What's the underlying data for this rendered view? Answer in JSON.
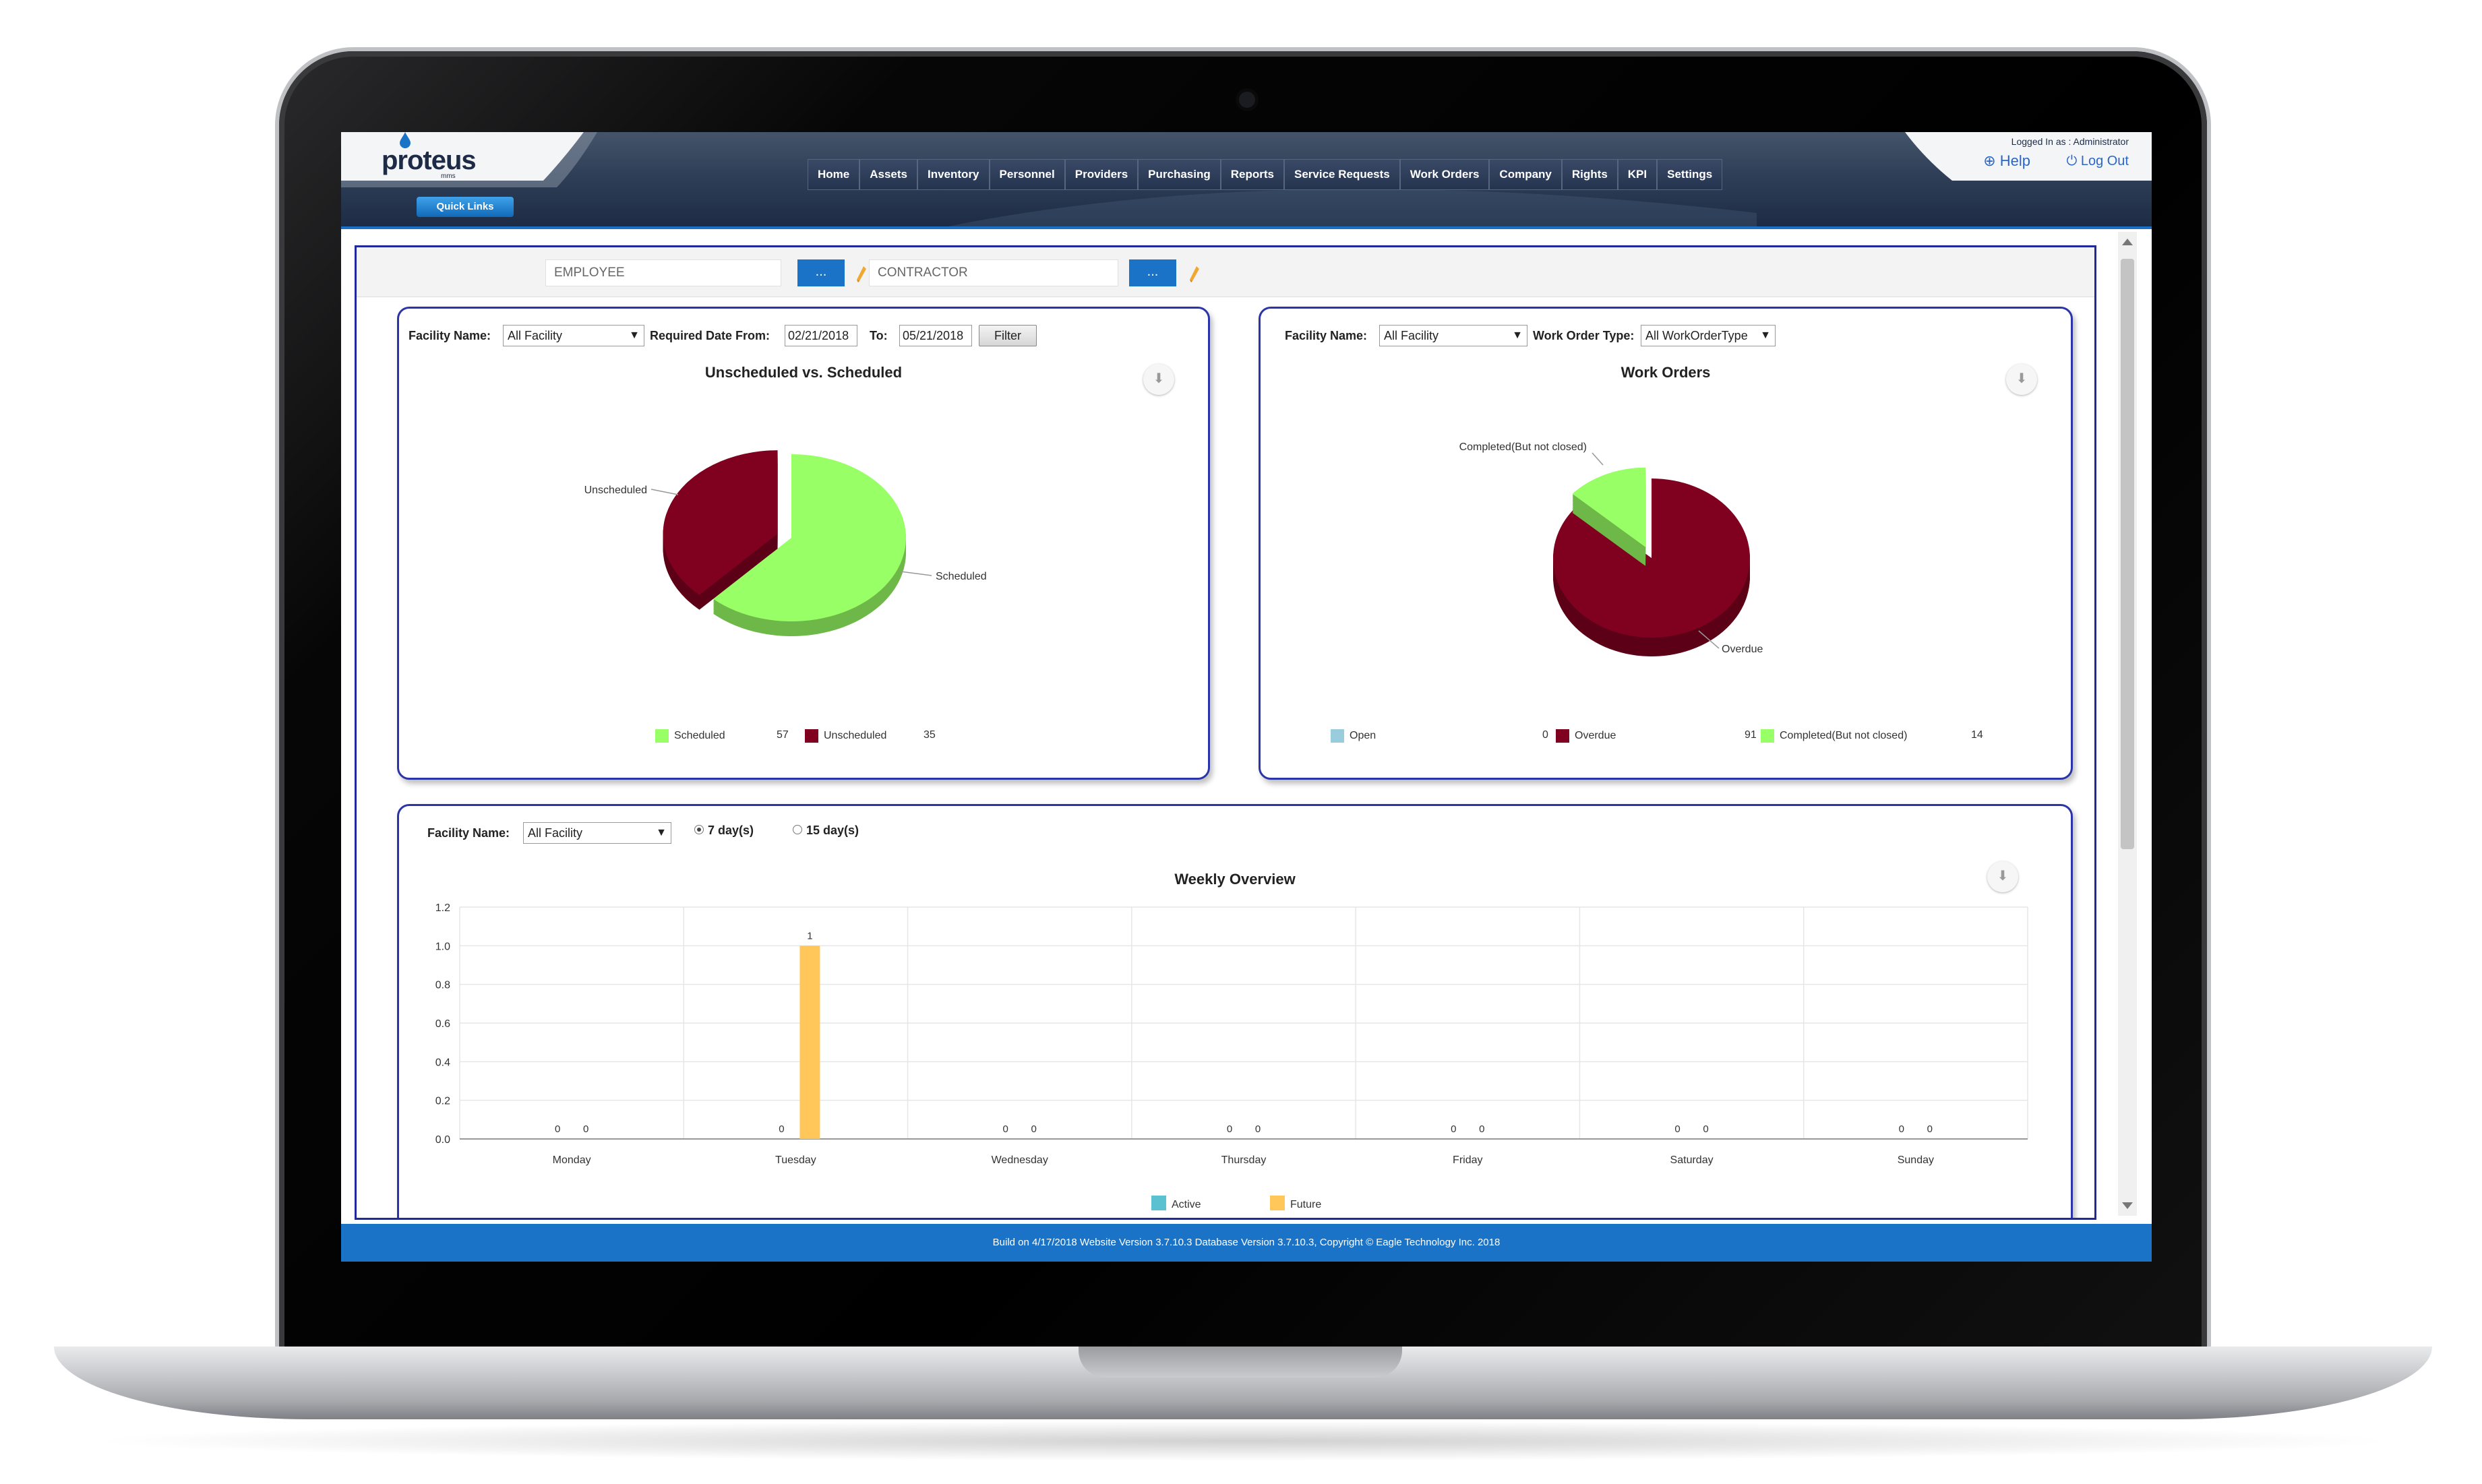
{
  "header": {
    "logo": "proteus",
    "logo_sub": "mms",
    "logged_in": "Logged In as : Administrator",
    "help": "Help",
    "logout": "Log Out",
    "quick_links": "Quick Links",
    "nav": [
      "Home",
      "Assets",
      "Inventory",
      "Personnel",
      "Providers",
      "Purchasing",
      "Reports",
      "Service Requests",
      "Work Orders",
      "Company",
      "Rights",
      "KPI",
      "Settings"
    ]
  },
  "filter_bar": {
    "employee_placeholder": "EMPLOYEE",
    "contractor_placeholder": "CONTRACTOR",
    "button_label": "..."
  },
  "panel1": {
    "facility_label": "Facility Name:",
    "facility_value": "All Facility",
    "date_from_label": "Required Date From:",
    "date_from": "02/21/2018",
    "to_label": "To:",
    "date_to": "05/21/2018",
    "filter_button": "Filter",
    "title": "Unscheduled vs. Scheduled",
    "chart_data": {
      "type": "pie",
      "title": "Unscheduled vs. Scheduled",
      "slices": [
        {
          "name": "Scheduled",
          "value": 57,
          "color": "#99ff66"
        },
        {
          "name": "Unscheduled",
          "value": 35,
          "color": "#800020"
        }
      ],
      "legend": "bottom"
    }
  },
  "panel2": {
    "facility_label": "Facility Name:",
    "facility_value": "All Facility",
    "type_label": "Work Order Type:",
    "type_value": "All WorkOrderType",
    "title": "Work Orders",
    "chart_data": {
      "type": "pie",
      "title": "Work Orders",
      "slices": [
        {
          "name": "Open",
          "value": 0,
          "color": "#99ccdd"
        },
        {
          "name": "Overdue",
          "value": 91,
          "color": "#800020"
        },
        {
          "name": "Completed(But not closed)",
          "value": 14,
          "color": "#99ff66"
        }
      ],
      "legend": "bottom"
    }
  },
  "panel3": {
    "facility_label": "Facility Name:",
    "facility_value": "All Facility",
    "radio_7": "7 day(s)",
    "radio_15": "15 day(s)",
    "radio_selected": "7 day(s)",
    "title": "Weekly Overview",
    "chart_data": {
      "type": "bar",
      "title": "Weekly Overview",
      "categories": [
        "Monday",
        "Tuesday",
        "Wednesday",
        "Thursday",
        "Friday",
        "Saturday",
        "Sunday"
      ],
      "series": [
        {
          "name": "Active",
          "values": [
            0,
            0,
            0,
            0,
            0,
            0,
            0
          ],
          "color": "#5bc0cf"
        },
        {
          "name": "Future",
          "values": [
            0,
            1,
            0,
            0,
            0,
            0,
            0
          ],
          "color": "#ffc65a"
        }
      ],
      "ylim": [
        0,
        1.2
      ],
      "yticks": [
        "0.0",
        "0.2",
        "0.4",
        "0.6",
        "0.8",
        "1.0",
        "1.2"
      ],
      "grid": true,
      "legend": "bottom"
    }
  },
  "footer": "Build on 4/17/2018 Website Version 3.7.10.3 Database Version 3.7.10.3, Copyright © Eagle Technology Inc. 2018"
}
